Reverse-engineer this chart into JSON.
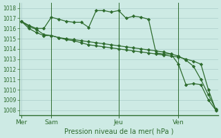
{
  "bg_color": "#cdeae4",
  "grid_color": "#aaccc8",
  "line_color": "#2d6b2d",
  "xlabel": "Pression niveau de la mer( hPa )",
  "ylim": [
    1007.5,
    1018.5
  ],
  "yticks": [
    1008,
    1009,
    1010,
    1011,
    1012,
    1013,
    1014,
    1015,
    1016,
    1017,
    1018
  ],
  "xtick_labels": [
    "Mer",
    "Sam",
    "Jeu",
    "Ven"
  ],
  "xtick_positions": [
    0,
    4,
    13,
    21
  ],
  "vlines": [
    4,
    13,
    21
  ],
  "line1_y": [
    1016.7,
    1016.3,
    1016.0,
    1016.0,
    1017.1,
    1016.9,
    1016.7,
    1016.6,
    1016.6,
    1016.1,
    1017.75,
    1017.75,
    1017.6,
    1017.75,
    1017.0,
    1017.2,
    1017.1,
    1016.9,
    1013.6,
    1013.5,
    1013.5,
    1012.5,
    1010.5,
    1010.6,
    1010.5,
    1009.0,
    1008.0
  ],
  "line2_y": [
    1016.7,
    1016.2,
    1015.9,
    1015.4,
    1015.3,
    1015.1,
    1014.9,
    1014.8,
    1014.6,
    1014.4,
    1014.3,
    1014.2,
    1014.1,
    1014.0,
    1013.9,
    1013.8,
    1013.7,
    1013.6,
    1013.5,
    1013.4,
    1013.3,
    1013.2,
    1013.0,
    1012.8,
    1012.5,
    1010.0,
    1008.0
  ],
  "line3_y": [
    1016.7,
    1016.0,
    1015.6,
    1015.3,
    1015.3,
    1015.1,
    1015.0,
    1014.9,
    1014.8,
    1014.7,
    1014.6,
    1014.5,
    1014.4,
    1014.3,
    1014.2,
    1014.1,
    1014.0,
    1013.9,
    1013.8,
    1013.7,
    1013.5,
    1013.3,
    1012.9,
    1012.3,
    1011.0,
    1009.5,
    1008.1
  ],
  "n_points": 27
}
